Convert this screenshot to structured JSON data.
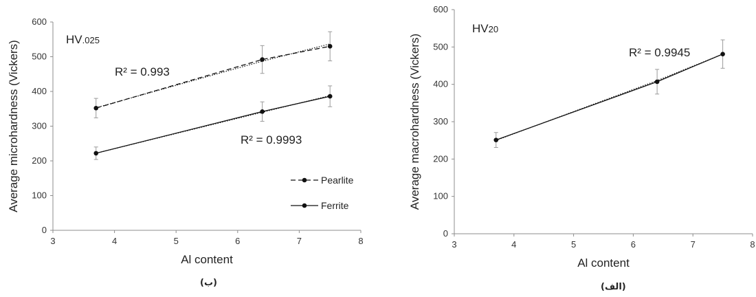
{
  "chart_data": [
    {
      "type": "line",
      "corner_label_main": "HV",
      "corner_label_sub": ".025",
      "xlabel": "Al content",
      "ylabel": "Average microhardness (Vickers)",
      "xlim": [
        3,
        8
      ],
      "ylim": [
        0,
        600
      ],
      "xticks": [
        3,
        4,
        5,
        6,
        7,
        8
      ],
      "yticks": [
        0,
        100,
        200,
        300,
        400,
        500,
        600
      ],
      "grid": false,
      "caption": "(ب)",
      "series": [
        {
          "name": "Pearlite",
          "style": "dashed",
          "x": [
            3.7,
            6.4,
            7.5
          ],
          "y": [
            352,
            492,
            530
          ],
          "error": [
            28,
            40,
            42
          ],
          "trendline": {
            "y": [
              353,
              487,
              537
            ]
          },
          "r2_label": "R² = 0.993"
        },
        {
          "name": "Ferrite",
          "style": "solid",
          "x": [
            3.7,
            6.4,
            7.5
          ],
          "y": [
            222,
            342,
            386
          ],
          "error": [
            18,
            28,
            30
          ],
          "trendline": {
            "y": [
              222,
              340,
              388
            ]
          },
          "r2_label": "R² = 0.9993"
        }
      ],
      "legend": "lower-right"
    },
    {
      "type": "line",
      "corner_label_main": "HV",
      "corner_label_sub": "20",
      "xlabel": "Al content",
      "ylabel": "Average macrohardness (Vickers)",
      "xlim": [
        3,
        8
      ],
      "ylim": [
        0,
        600
      ],
      "xticks": [
        3,
        4,
        5,
        6,
        7,
        8
      ],
      "yticks": [
        0,
        100,
        200,
        300,
        400,
        500,
        600
      ],
      "grid": false,
      "caption": "(الف)",
      "series": [
        {
          "style": "solid",
          "x": [
            3.7,
            6.4,
            7.5
          ],
          "y": [
            251,
            407,
            481
          ],
          "error": [
            20,
            33,
            38
          ],
          "trendline": {
            "y": [
              250,
              410,
              481
            ]
          },
          "r2_label": "R² = 0.9945"
        }
      ]
    }
  ],
  "colors": {
    "line": "#111111",
    "axis": "#8c8c8c",
    "error_bar": "#9a9a9a"
  }
}
